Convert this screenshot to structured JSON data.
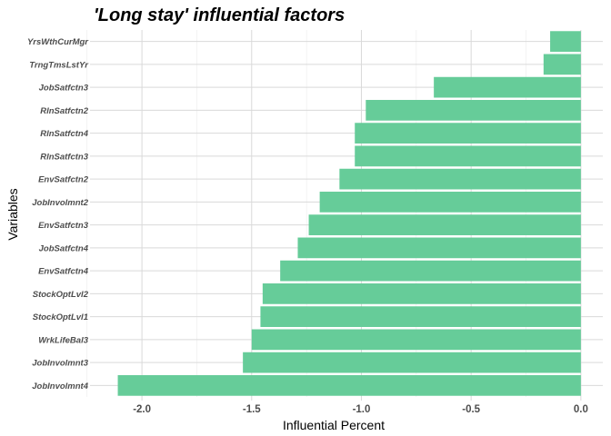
{
  "chart_data": {
    "type": "bar",
    "orientation": "horizontal",
    "title": "'Long stay' influential factors",
    "xlabel": "Influential Percent",
    "ylabel": "Variables",
    "categories": [
      "YrsWthCurMgr",
      "TrngTmsLstYr",
      "JobSatfctn3",
      "RlnSatfctn2",
      "RlnSatfctn4",
      "RlnSatfctn3",
      "EnvSatfctn2",
      "JobInvolmnt2",
      "EnvSatfctn3",
      "JobSatfctn4",
      "EnvSatfctn4",
      "StockOptLvl2",
      "StockOptLvl1",
      "WrkLifeBal3",
      "JobInvolmnt3",
      "JobInvolmnt4"
    ],
    "values": [
      -0.14,
      -0.17,
      -0.67,
      -0.98,
      -1.03,
      -1.03,
      -1.1,
      -1.19,
      -1.24,
      -1.29,
      -1.37,
      -1.45,
      -1.46,
      -1.5,
      -1.54,
      -2.11
    ],
    "xlim": [
      -2.22,
      0.1
    ],
    "xticks": [
      "-2.0",
      "-1.5",
      "-1.0",
      "-0.5",
      "0.0"
    ],
    "xtick_values": [
      -2.0,
      -1.5,
      -1.0,
      -0.5,
      0.0
    ],
    "bar_color": "#66cc99",
    "grid": true,
    "legend": "none"
  }
}
